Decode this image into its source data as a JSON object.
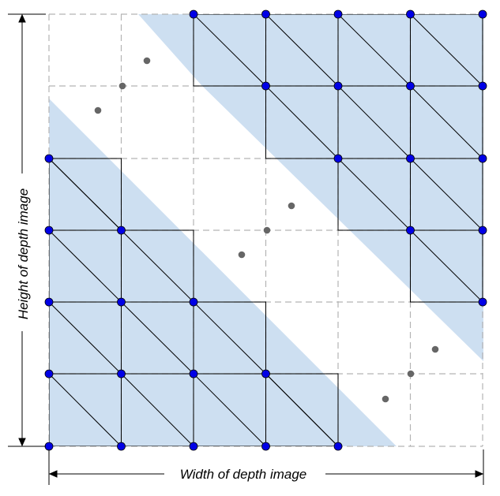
{
  "labels": {
    "width": "Width of depth image",
    "height": "Height of depth image"
  },
  "grid": {
    "cols": 6,
    "rows": 6
  },
  "colors": {
    "region_fill": "#cddff1",
    "vertex": "#0000e6",
    "projected_point": "#666666",
    "grid_dashed": "#b3b3b3",
    "mesh_line": "#000000"
  },
  "notes": "Upper-right and lower-left shaded bands are triangulated valid-depth regions; the white diagonal band is the occluded/invalid region."
}
